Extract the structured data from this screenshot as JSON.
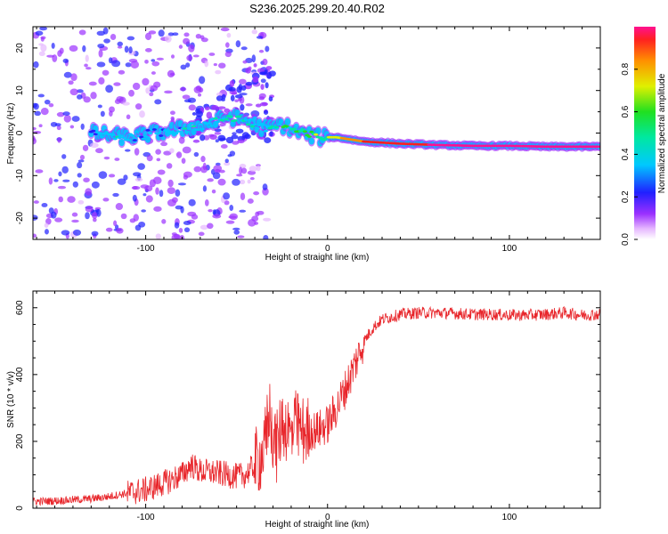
{
  "figure_title": "S236.2025.299.20.40.R02",
  "chart_data": [
    {
      "type": "heatmap",
      "title": "S236.2025.299.20.40.R02",
      "xlabel": "Height of straight line (km)",
      "ylabel": "Frequency (Hz)",
      "xlim": [
        -162,
        150
      ],
      "ylim": [
        -25,
        25
      ],
      "xticks": [
        -100,
        0,
        100
      ],
      "yticks": [
        -20,
        -10,
        0,
        10,
        20
      ],
      "colorbar": {
        "label": "Normalized spectral amplitude",
        "range": [
          0,
          1
        ],
        "ticks": [
          0.0,
          0.2,
          0.4,
          0.6,
          0.8
        ]
      },
      "ridge": {
        "x": [
          -130,
          -110,
          -95,
          -80,
          -65,
          -55,
          -45,
          -35,
          -25,
          -15,
          -5,
          5,
          20,
          40,
          60,
          80,
          100,
          120,
          150
        ],
        "y": [
          0,
          -1,
          0,
          1,
          2,
          4,
          3,
          1,
          2,
          0,
          -1,
          -1,
          -2,
          -2.5,
          -2.8,
          -3,
          -3,
          -3.2,
          -3.2
        ],
        "amplitude": [
          0.3,
          0.35,
          0.3,
          0.35,
          0.3,
          0.4,
          0.45,
          0.4,
          0.5,
          0.55,
          0.6,
          0.7,
          0.85,
          0.9,
          0.95,
          0.95,
          0.95,
          0.95,
          0.95
        ]
      }
    },
    {
      "type": "line",
      "xlabel": "Height of straight line (km)",
      "ylabel": "SNR (10 * v/v)",
      "xlim": [
        -162,
        150
      ],
      "ylim": [
        0,
        650
      ],
      "xticks": [
        -100,
        0,
        100
      ],
      "yticks": [
        0,
        200,
        400,
        600
      ],
      "series": [
        {
          "name": "SNR",
          "color": "#e8262b",
          "x": [
            -162,
            -150,
            -140,
            -130,
            -120,
            -110,
            -100,
            -90,
            -80,
            -75,
            -70,
            -60,
            -50,
            -45,
            -40,
            -35,
            -32,
            -30,
            -28,
            -25,
            -22,
            -20,
            -18,
            -15,
            -10,
            -5,
            0,
            5,
            10,
            15,
            20,
            25,
            30,
            40,
            50,
            60,
            70,
            80,
            90,
            100,
            110,
            120,
            130,
            140,
            150
          ],
          "y": [
            20,
            22,
            25,
            28,
            35,
            45,
            55,
            75,
            100,
            130,
            110,
            105,
            95,
            100,
            130,
            170,
            300,
            220,
            180,
            260,
            240,
            210,
            250,
            230,
            230,
            235,
            250,
            300,
            360,
            430,
            500,
            540,
            565,
            580,
            585,
            585,
            583,
            580,
            580,
            578,
            578,
            580,
            585,
            578,
            580
          ]
        }
      ]
    }
  ]
}
